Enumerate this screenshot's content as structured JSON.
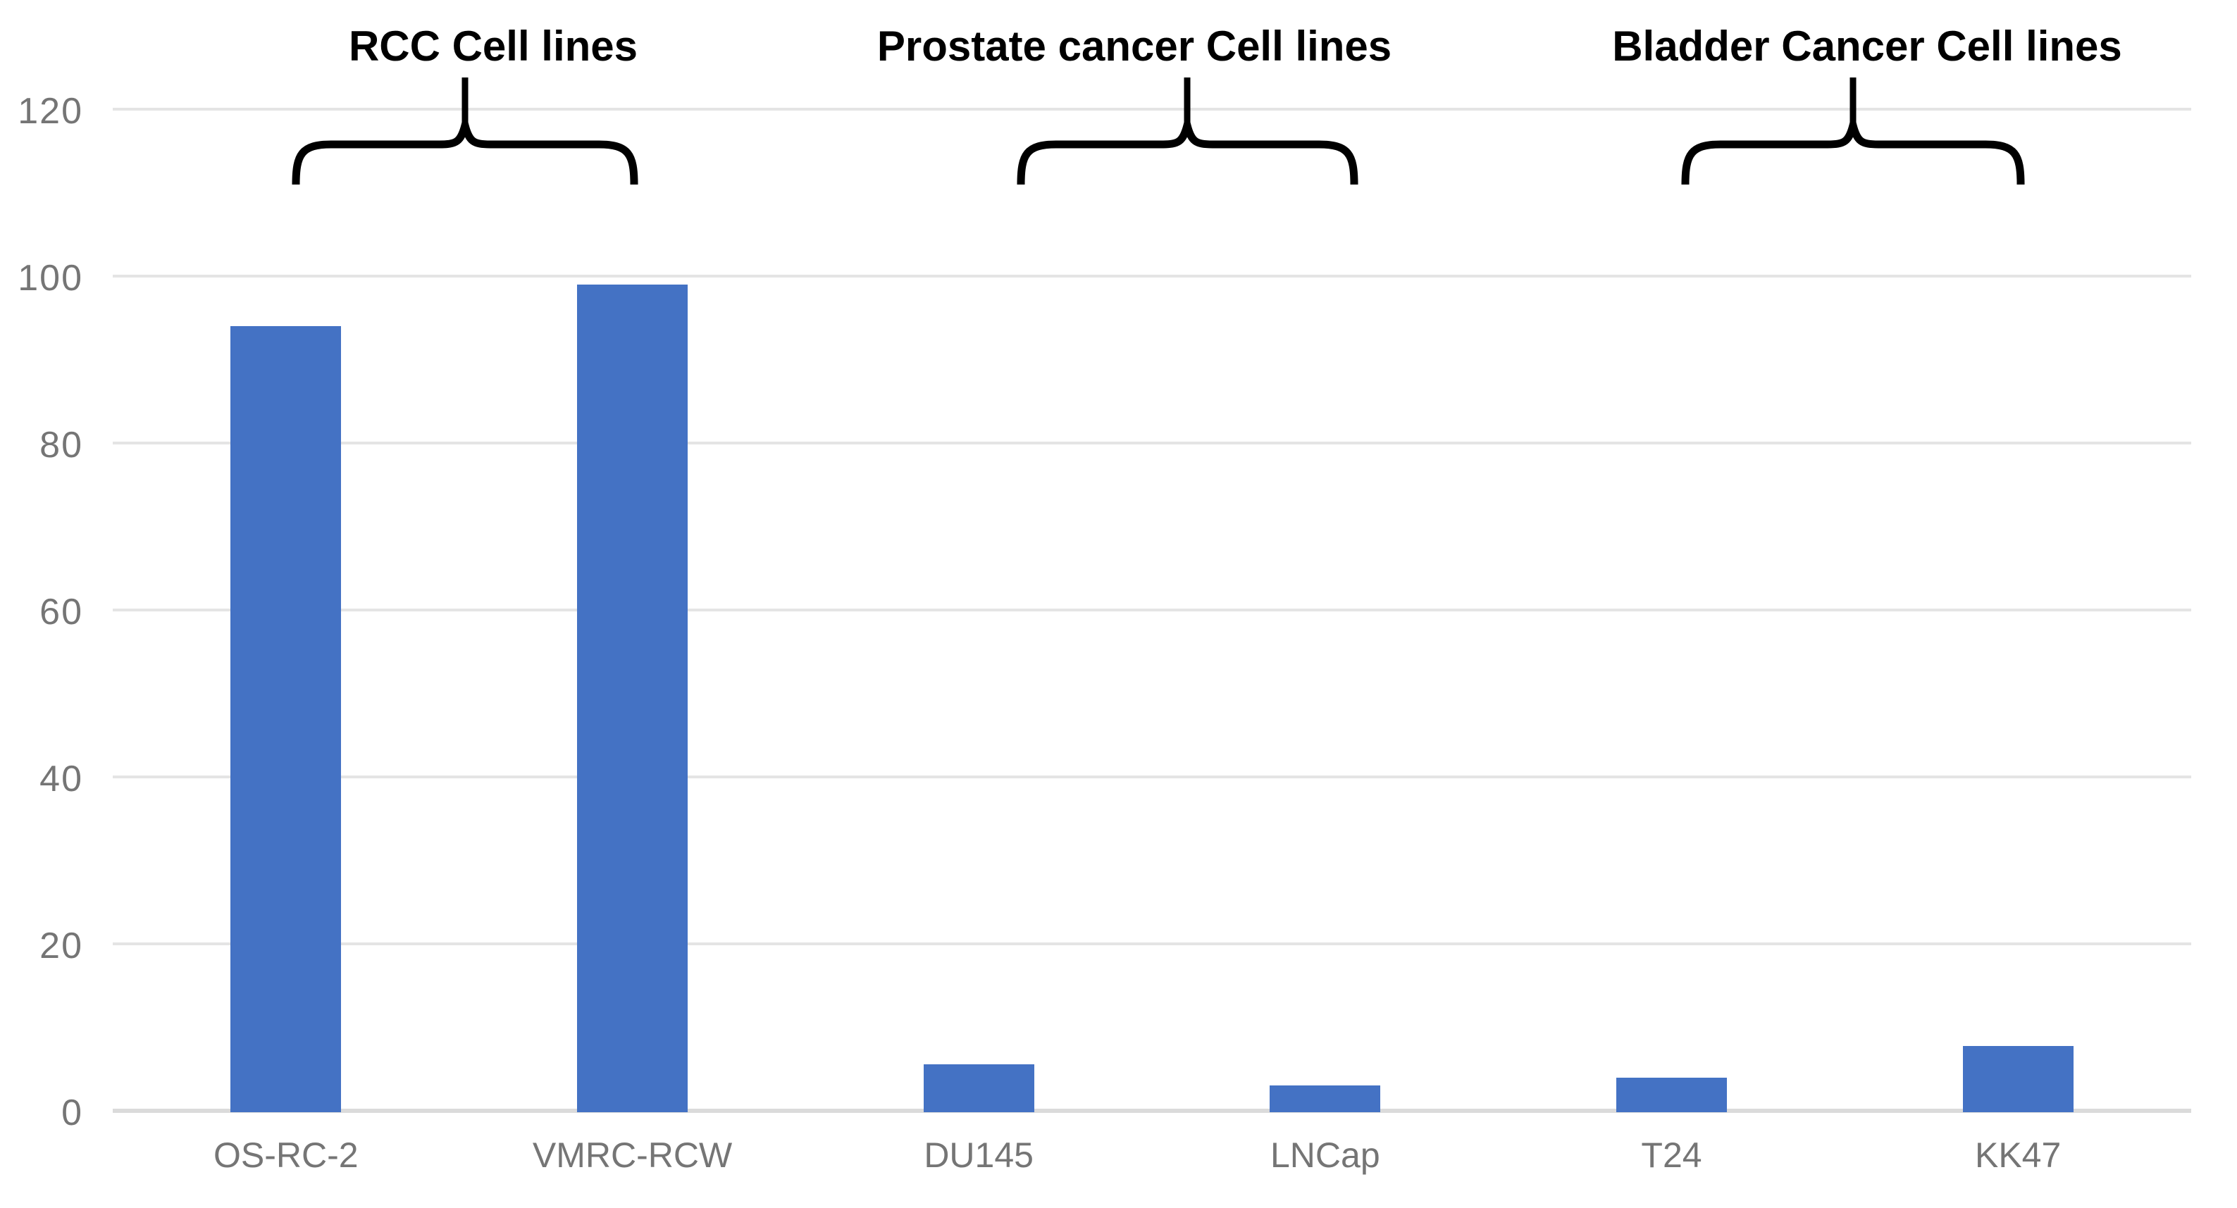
{
  "chart_data": {
    "type": "bar",
    "title": "",
    "xlabel": "",
    "ylabel": "",
    "categories": [
      "OS-RC-2",
      "VMRC-RCW",
      "DU145",
      "LNCap",
      "T24",
      "KK47"
    ],
    "values": [
      94,
      99,
      5.6,
      3,
      4,
      7.8
    ],
    "groups": [
      {
        "label": "RCC Cell lines",
        "from_index": 0,
        "to_index": 1
      },
      {
        "label": "Prostate cancer Cell lines",
        "from_index": 2,
        "to_index": 3
      },
      {
        "label": "Bladder Cancer Cell lines",
        "from_index": 4,
        "to_index": 5
      }
    ],
    "yticks": [
      0,
      20,
      40,
      60,
      80,
      100,
      120
    ],
    "ylim": [
      0,
      120
    ],
    "grid": true,
    "legend_position": "none",
    "bar_color": "#4472C4",
    "gridline_color": "#E4E4E4",
    "axis_line_color": "#DBDBDB",
    "tick_label_color": "#757575",
    "group_label_color": "#000000",
    "brace_color": "#000000"
  }
}
